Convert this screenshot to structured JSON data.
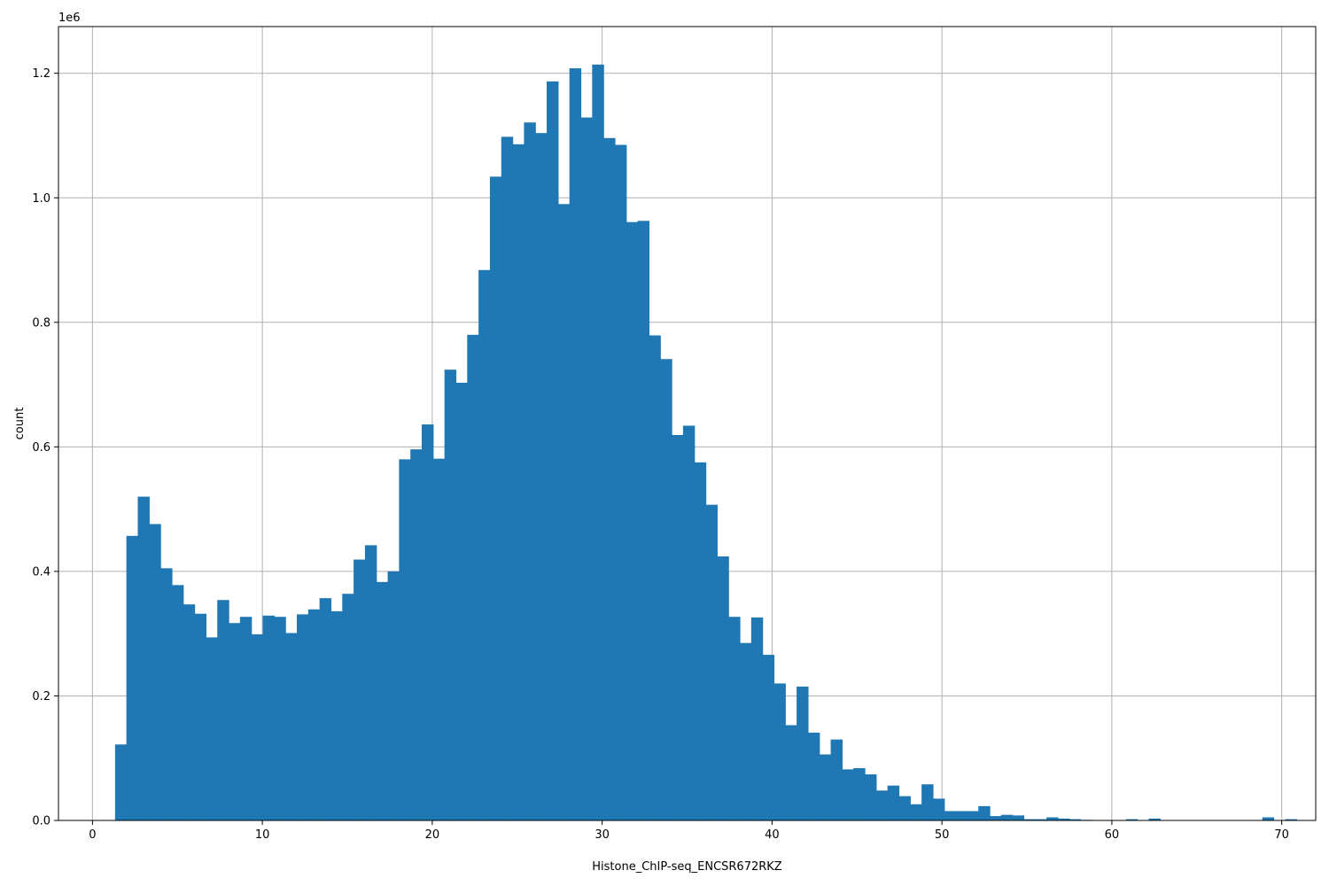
{
  "chart_data": {
    "type": "bar",
    "subtype": "histogram",
    "title": "",
    "xlabel": "Histone_ChIP-seq_ENCSR672RKZ",
    "ylabel": "count",
    "y_offset_label": "1e6",
    "xlim": [
      -2.0,
      72.0
    ],
    "ylim": [
      0,
      1.275
    ],
    "grid": true,
    "color": "#1f77b4",
    "x_ticks": [
      0,
      10,
      20,
      30,
      40,
      50,
      60,
      70
    ],
    "x_tick_labels": [
      "0",
      "10",
      "20",
      "30",
      "40",
      "50",
      "60",
      "70"
    ],
    "y_ticks": [
      0.0,
      0.2,
      0.4,
      0.6,
      0.8,
      1.0,
      1.2
    ],
    "y_tick_labels": [
      "0.0",
      "0.2",
      "0.4",
      "0.6",
      "0.8",
      "1.0",
      "1.2"
    ],
    "bin_start": 1.33,
    "bin_width": 0.6686,
    "values": [
      0.122,
      0.457,
      0.52,
      0.476,
      0.405,
      0.378,
      0.347,
      0.332,
      0.294,
      0.354,
      0.317,
      0.327,
      0.299,
      0.329,
      0.327,
      0.301,
      0.331,
      0.339,
      0.357,
      0.336,
      0.364,
      0.419,
      0.442,
      0.383,
      0.4,
      0.58,
      0.596,
      0.636,
      0.581,
      0.724,
      0.703,
      0.78,
      0.884,
      1.034,
      1.098,
      1.086,
      1.121,
      1.104,
      1.187,
      0.99,
      1.208,
      1.129,
      1.214,
      1.096,
      1.085,
      0.961,
      0.963,
      0.779,
      0.741,
      0.619,
      0.634,
      0.575,
      0.507,
      0.424,
      0.327,
      0.285,
      0.326,
      0.266,
      0.22,
      0.153,
      0.215,
      0.141,
      0.106,
      0.13,
      0.082,
      0.084,
      0.074,
      0.048,
      0.056,
      0.039,
      0.026,
      0.058,
      0.035,
      0.015,
      0.015,
      0.015,
      0.023,
      0.007,
      0.009,
      0.008,
      0.002,
      0.002,
      0.005,
      0.003,
      0.002,
      0.001,
      0.0,
      0.0,
      0.0,
      0.002,
      0.0,
      0.003,
      0.0,
      0.0,
      0.0,
      0.0,
      0.0,
      0.0,
      0.0,
      0.0,
      0.0,
      0.005,
      0.0,
      0.002
    ]
  }
}
